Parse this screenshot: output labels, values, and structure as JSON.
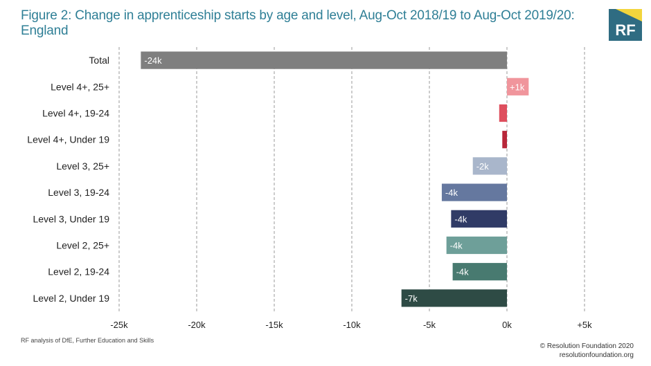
{
  "title": "Figure 2: Change in apprenticeship starts by age and level, Aug-Oct 2018/19 to Aug-Oct 2019/20: England",
  "logo": {
    "text": "RF",
    "bg": "#2f6c82",
    "accent": "#f2d53c"
  },
  "source": "RF analysis of DfE, Further Education and Skills",
  "copyright": [
    "© Resolution Foundation 2020",
    "resolutionfoundation.org"
  ],
  "chart_data": {
    "type": "bar",
    "orientation": "horizontal",
    "categories": [
      "Total",
      "Level 4+, 25+",
      "Level 4+, 19-24",
      "Level 4+, Under 19",
      "Level 3, 25+",
      "Level 3, 19-24",
      "Level 3, Under 19",
      "Level 2, 25+",
      "Level 2, 19-24",
      "Level 2, Under 19"
    ],
    "values": [
      -23.6,
      1.4,
      -0.5,
      -0.3,
      -2.2,
      -4.2,
      -3.6,
      -3.9,
      -3.5,
      -6.8
    ],
    "data_labels": [
      "-24k",
      "+1k",
      "",
      "",
      "-2k",
      "-4k",
      "-4k",
      "-4k",
      "-4k",
      "-7k"
    ],
    "colors": [
      "#7f7f7f",
      "#f0959c",
      "#de4f5e",
      "#b8273a",
      "#a9b6cb",
      "#65789f",
      "#303b66",
      "#6e9f99",
      "#487a70",
      "#2e4b45"
    ],
    "xlim": [
      -25,
      5
    ],
    "xticks": [
      -25,
      -20,
      -15,
      -10,
      -5,
      0,
      5
    ],
    "xtick_labels": [
      "-25k",
      "-20k",
      "-15k",
      "-10k",
      "-5k",
      "0k",
      "+5k"
    ],
    "grid": "vertical-dashed",
    "xlabel": "",
    "ylabel": ""
  }
}
